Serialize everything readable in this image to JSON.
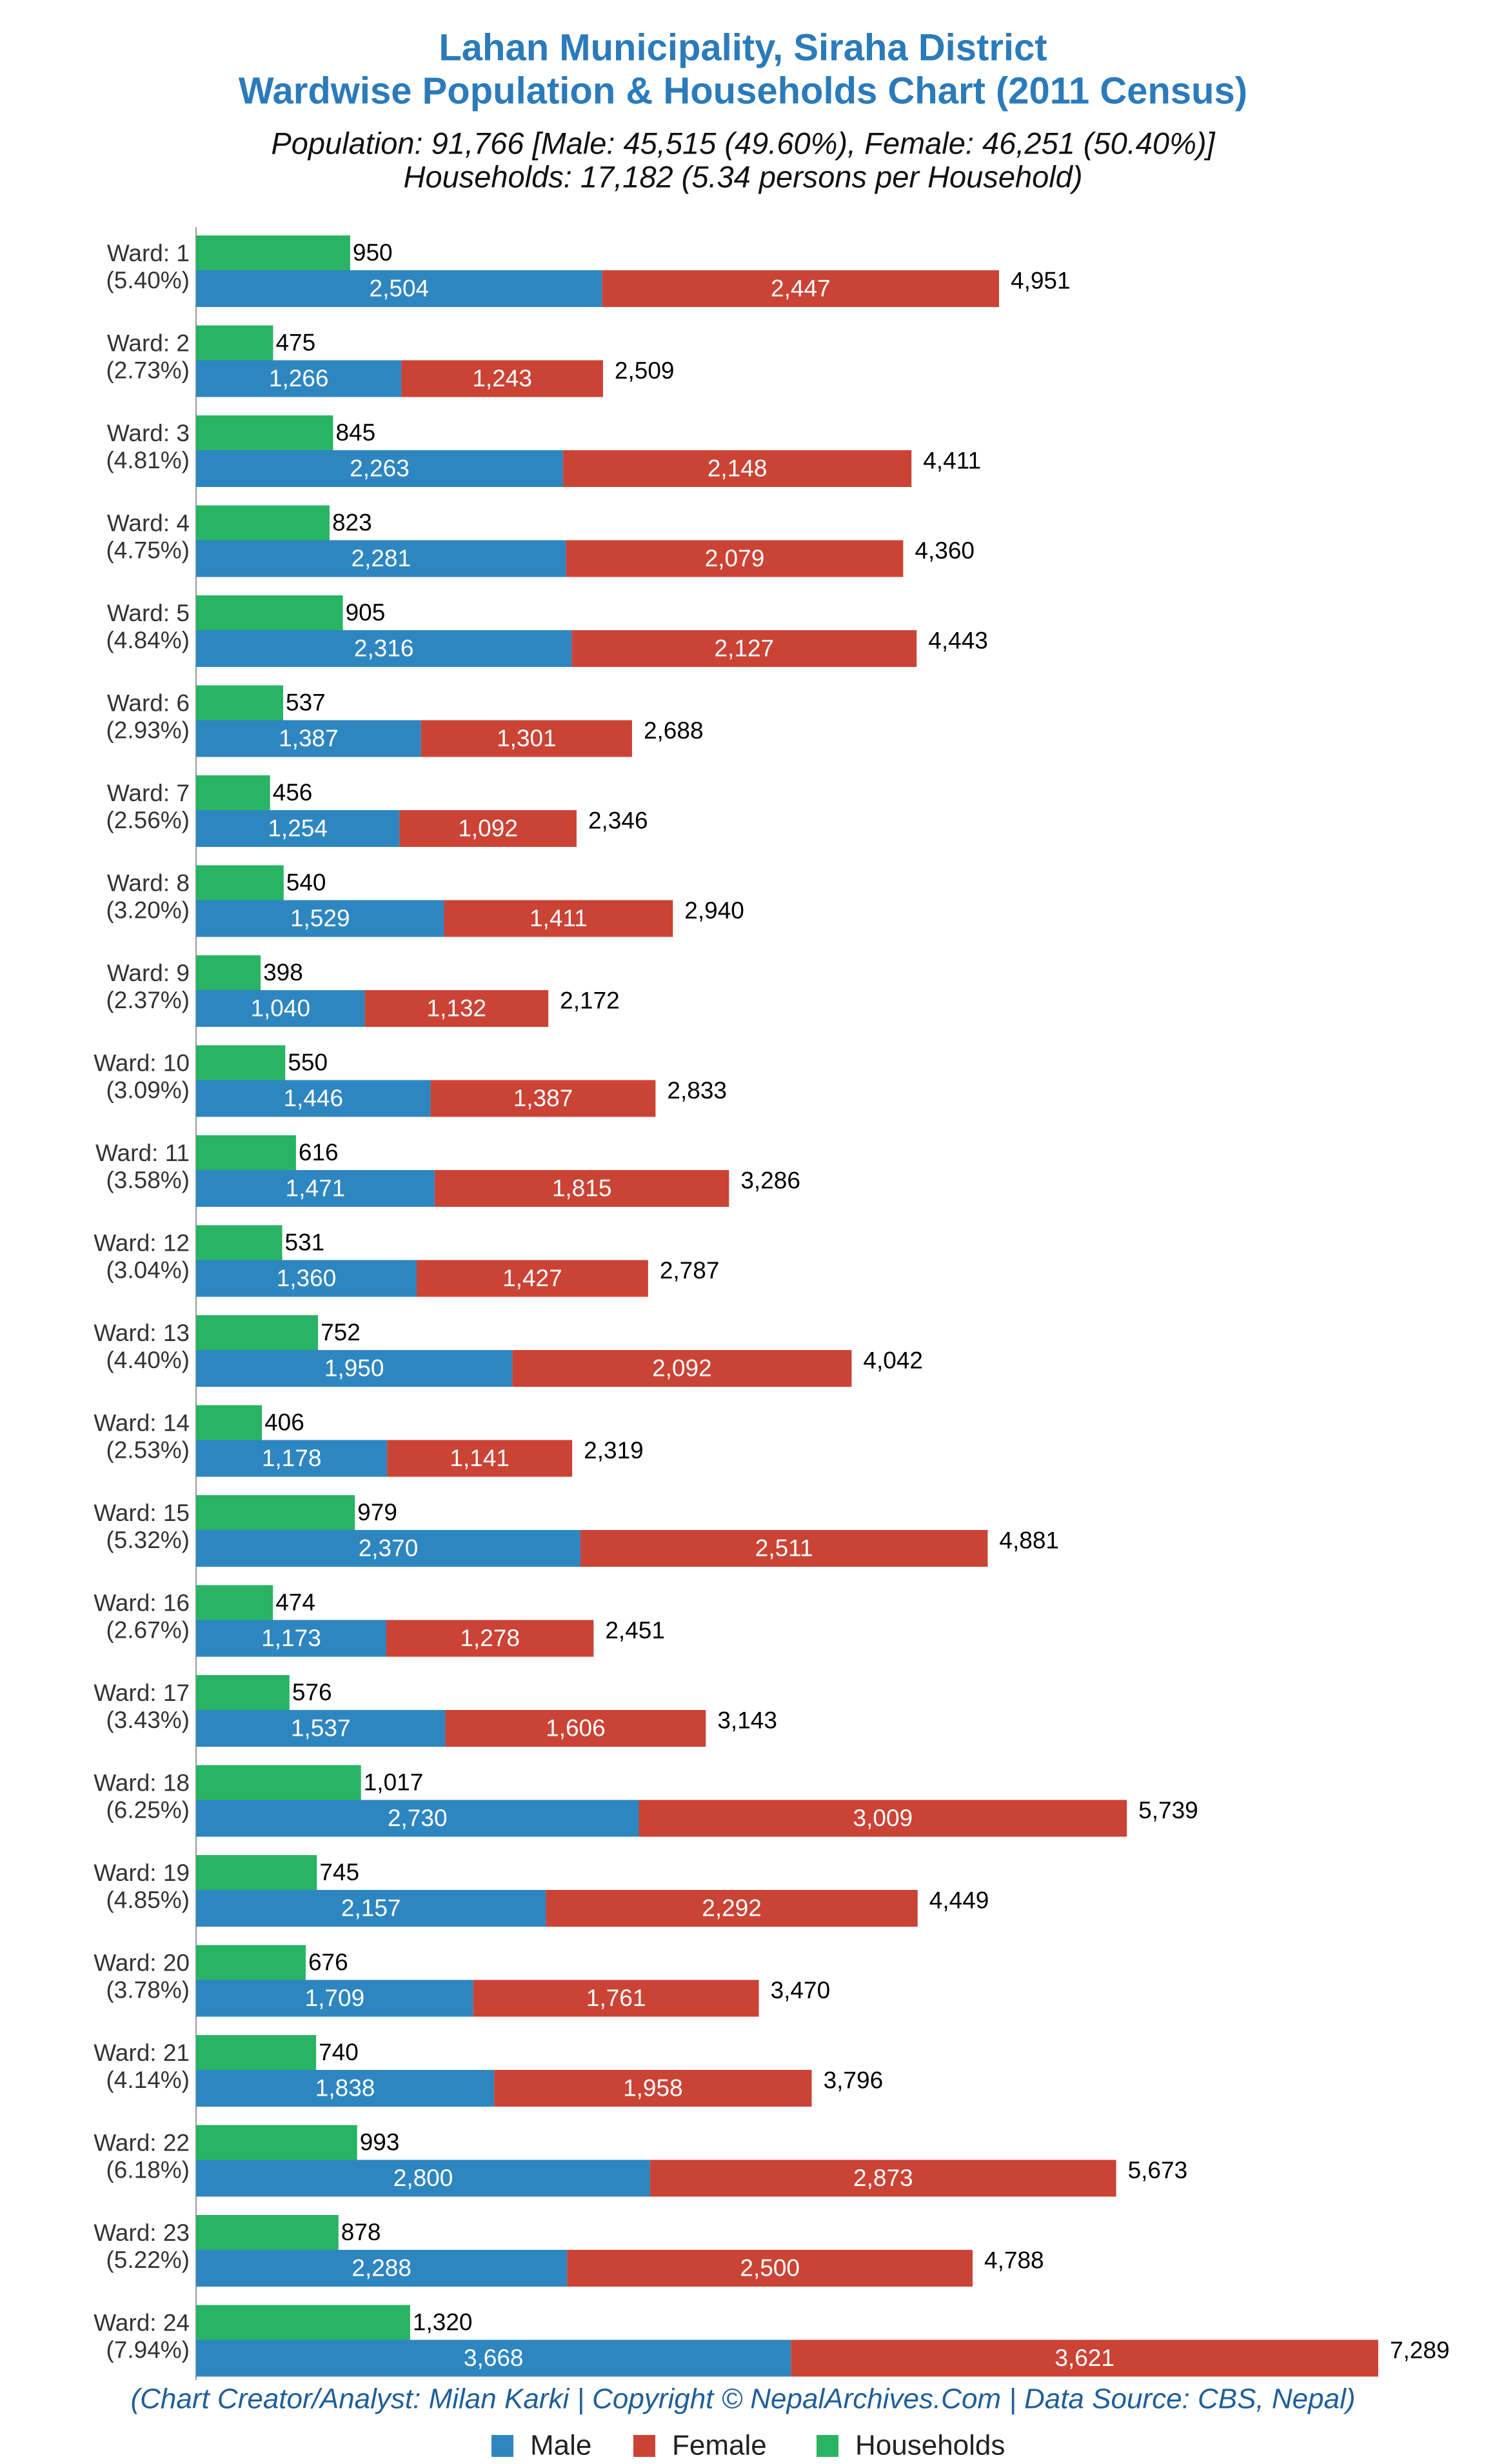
{
  "chart_data": {
    "type": "bar",
    "title": [
      "Lahan Municipality, Siraha District",
      "Wardwise Population & Households Chart (2011 Census)"
    ],
    "subtitle": [
      "Population: 91,766 [Male: 45,515 (49.60%), Female: 46,251 (50.40%)]",
      "Households: 17,182 (5.34 persons per Household)"
    ],
    "caption": "(Chart Creator/Analyst: Milan Karki | Copyright © NepalArchives.Com | Data Source: CBS, Nepal)",
    "categories": [
      "Ward: 1",
      "Ward: 2",
      "Ward: 3",
      "Ward: 4",
      "Ward: 5",
      "Ward: 6",
      "Ward: 7",
      "Ward: 8",
      "Ward: 9",
      "Ward: 10",
      "Ward: 11",
      "Ward: 12",
      "Ward: 13",
      "Ward: 14",
      "Ward: 15",
      "Ward: 16",
      "Ward: 17",
      "Ward: 18",
      "Ward: 19",
      "Ward: 20",
      "Ward: 21",
      "Ward: 22",
      "Ward: 23",
      "Ward: 24"
    ],
    "category_shares": [
      "(5.40%)",
      "(2.73%)",
      "(4.81%)",
      "(4.75%)",
      "(4.84%)",
      "(2.93%)",
      "(2.56%)",
      "(3.20%)",
      "(2.37%)",
      "(3.09%)",
      "(3.58%)",
      "(3.04%)",
      "(4.40%)",
      "(2.53%)",
      "(5.32%)",
      "(2.67%)",
      "(3.43%)",
      "(6.25%)",
      "(4.85%)",
      "(3.78%)",
      "(4.14%)",
      "(6.18%)",
      "(5.22%)",
      "(7.94%)"
    ],
    "xlim": [
      0,
      7500
    ],
    "series": [
      {
        "name": "Male",
        "color": "#2e86c1",
        "values": [
          2504,
          1266,
          2263,
          2281,
          2316,
          1387,
          1254,
          1529,
          1040,
          1446,
          1471,
          1360,
          1950,
          1178,
          2370,
          1173,
          1537,
          2730,
          2157,
          1709,
          1838,
          2800,
          2288,
          3668
        ],
        "value_labels": [
          "2,504",
          "1,266",
          "2,263",
          "2,281",
          "2,316",
          "1,387",
          "1,254",
          "1,529",
          "1,040",
          "1,446",
          "1,471",
          "1,360",
          "1,950",
          "1,178",
          "2,370",
          "1,173",
          "1,537",
          "2,730",
          "2,157",
          "1,709",
          "1,838",
          "2,800",
          "2,288",
          "3,668"
        ]
      },
      {
        "name": "Female",
        "color": "#cb4335",
        "values": [
          2447,
          1243,
          2148,
          2079,
          2127,
          1301,
          1092,
          1411,
          1132,
          1387,
          1815,
          1427,
          2092,
          1141,
          2511,
          1278,
          1606,
          3009,
          2292,
          1761,
          1958,
          2873,
          2500,
          3621
        ],
        "value_labels": [
          "2,447",
          "1,243",
          "2,148",
          "2,079",
          "2,127",
          "1,301",
          "1,092",
          "1,411",
          "1,132",
          "1,387",
          "1,815",
          "1,427",
          "2,092",
          "1,141",
          "2,511",
          "1,278",
          "1,606",
          "3,009",
          "2,292",
          "1,761",
          "1,958",
          "2,873",
          "2,500",
          "3,621"
        ]
      },
      {
        "name": "Households",
        "color": "#28b463",
        "values": [
          950,
          475,
          845,
          823,
          905,
          537,
          456,
          540,
          398,
          550,
          616,
          531,
          752,
          406,
          979,
          474,
          576,
          1017,
          745,
          676,
          740,
          993,
          878,
          1320
        ],
        "value_labels": [
          "950",
          "475",
          "845",
          "823",
          "905",
          "537",
          "456",
          "540",
          "398",
          "550",
          "616",
          "531",
          "752",
          "406",
          "979",
          "474",
          "576",
          "1,017",
          "745",
          "676",
          "740",
          "993",
          "878",
          "1,320"
        ]
      }
    ],
    "totals": {
      "values": [
        4951,
        2509,
        4411,
        4360,
        4443,
        2688,
        2346,
        2940,
        2172,
        2833,
        3286,
        2787,
        4042,
        2319,
        4881,
        2451,
        3143,
        5739,
        4449,
        3470,
        3796,
        5673,
        4788,
        7289
      ],
      "value_labels": [
        "4,951",
        "2,509",
        "4,411",
        "4,360",
        "4,443",
        "2,688",
        "2,346",
        "2,940",
        "2,172",
        "2,833",
        "3,286",
        "2,787",
        "4,042",
        "2,319",
        "4,881",
        "2,451",
        "3,143",
        "5,739",
        "4,449",
        "3,470",
        "3,796",
        "5,673",
        "4,788",
        "7,289"
      ]
    },
    "legend": "bottom"
  }
}
